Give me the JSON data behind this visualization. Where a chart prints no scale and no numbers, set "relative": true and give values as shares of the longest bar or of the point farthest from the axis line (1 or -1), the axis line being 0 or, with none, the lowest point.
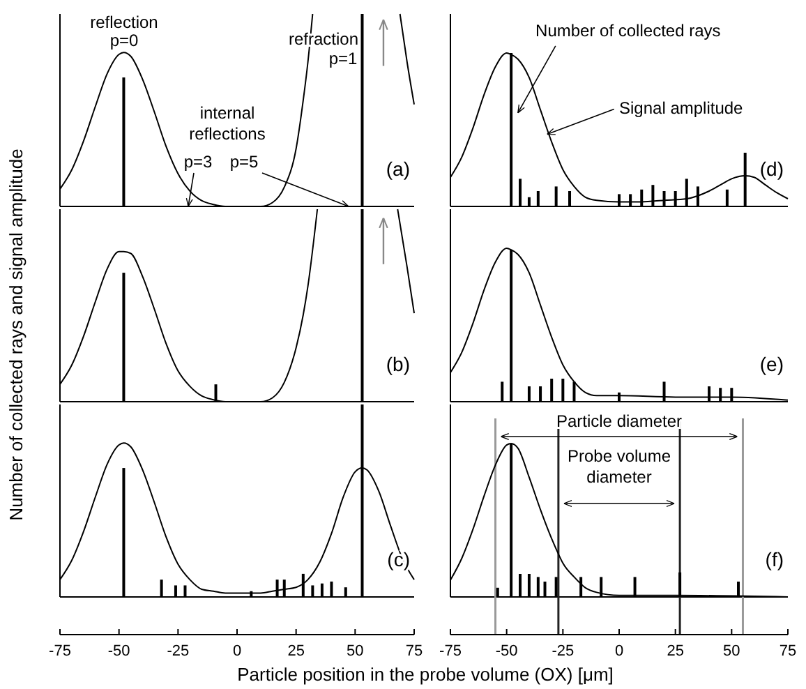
{
  "chart_data": [
    {
      "type": "line",
      "relative": true,
      "xlim": [
        -75,
        75
      ],
      "xticks": [
        -75,
        -50,
        -25,
        0,
        25,
        50,
        75
      ],
      "tick_labels": false,
      "ylabel": "Number of collected rays and signal amplitude",
      "series": [
        {
          "color": "#000000",
          "x": [
            -75,
            -70,
            -65,
            -60,
            -55,
            -50,
            -48,
            -45,
            -40,
            -35,
            -30,
            -25,
            -20,
            -15,
            -10,
            -5,
            0,
            5,
            10,
            15,
            20,
            25,
            28,
            30,
            32,
            50,
            69,
            72,
            75
          ],
          "values": [
            0.09,
            0.19,
            0.34,
            0.52,
            0.69,
            0.79,
            0.8,
            0.78,
            0.66,
            0.49,
            0.31,
            0.17,
            0.08,
            0.03,
            0.01,
            0,
            0,
            0,
            0,
            0.02,
            0.1,
            0.3,
            0.55,
            0.75,
            1,
            null,
            1,
            0.75,
            0.53
          ]
        },
        {
          "type": "bar",
          "color": "#000000",
          "x": [
            -48,
            53
          ],
          "values": [
            0.67,
            1
          ]
        }
      ],
      "annotations": [
        "reflection",
        "p=0",
        "refraction",
        "p=1",
        "internal reflections",
        "p=3",
        "p=5",
        "(a)"
      ]
    },
    {
      "type": "line",
      "relative": true,
      "xlim": [
        -75,
        75
      ],
      "xticks": [
        -75,
        -50,
        -25,
        0,
        25,
        50,
        75
      ],
      "tick_labels": false,
      "series": [
        {
          "color": "#000000",
          "x": [
            -75,
            -70,
            -65,
            -60,
            -55,
            -50,
            -48,
            -45,
            -40,
            -35,
            -30,
            -25,
            -20,
            -15,
            -10,
            -5,
            0,
            5,
            10,
            15,
            20,
            25,
            28,
            30,
            34,
            50,
            68,
            72,
            75
          ],
          "values": [
            0.09,
            0.19,
            0.34,
            0.52,
            0.69,
            0.78,
            0.78,
            0.77,
            0.65,
            0.48,
            0.3,
            0.16,
            0.08,
            0.03,
            0.01,
            0,
            0,
            0,
            0,
            0.02,
            0.1,
            0.28,
            0.45,
            0.6,
            1,
            null,
            1,
            0.7,
            0.46
          ]
        },
        {
          "type": "bar",
          "color": "#000000",
          "x": [
            -48,
            -9,
            53
          ],
          "values": [
            0.67,
            0.09,
            1
          ]
        }
      ],
      "annotations": [
        "(b)"
      ]
    },
    {
      "type": "line",
      "relative": true,
      "xlim": [
        -75,
        75
      ],
      "xticks": [
        -75,
        -50,
        -25,
        0,
        25,
        50,
        75
      ],
      "tick_labels": "x",
      "series": [
        {
          "color": "#000000",
          "x": [
            -75,
            -70,
            -65,
            -60,
            -55,
            -50,
            -48,
            -45,
            -40,
            -35,
            -30,
            -25,
            -20,
            -15,
            -10,
            -5,
            0,
            5,
            10,
            15,
            20,
            25,
            30,
            35,
            40,
            45,
            50,
            53,
            55,
            60,
            65,
            70,
            75
          ],
          "values": [
            0.09,
            0.19,
            0.34,
            0.52,
            0.69,
            0.79,
            0.8,
            0.78,
            0.66,
            0.49,
            0.31,
            0.17,
            0.09,
            0.04,
            0.03,
            0.02,
            0.02,
            0.02,
            0.02,
            0.03,
            0.04,
            0.05,
            0.09,
            0.18,
            0.33,
            0.52,
            0.65,
            0.67,
            0.66,
            0.55,
            0.37,
            0.2,
            0.09
          ]
        },
        {
          "type": "bar",
          "color": "#000000",
          "x": [
            -48,
            -32,
            -26,
            -22,
            6,
            17,
            20,
            28,
            32,
            36,
            40,
            46,
            53
          ],
          "values": [
            0.67,
            0.09,
            0.06,
            0.06,
            0.03,
            0.09,
            0.09,
            0.12,
            0.06,
            0.07,
            0.08,
            0.05,
            1
          ]
        }
      ],
      "annotations": [
        "(c)"
      ]
    },
    {
      "type": "line",
      "relative": true,
      "xlim": [
        -75,
        75
      ],
      "xticks": [
        -75,
        -50,
        -25,
        0,
        25,
        50,
        75
      ],
      "tick_labels": false,
      "series": [
        {
          "color": "#000000",
          "x": [
            -75,
            -70,
            -65,
            -60,
            -55,
            -50,
            -48,
            -45,
            -40,
            -35,
            -30,
            -25,
            -20,
            -15,
            -10,
            0,
            10,
            20,
            30,
            40,
            45,
            50,
            56,
            60,
            65,
            70,
            75
          ],
          "values": [
            0.19,
            0.32,
            0.51,
            0.73,
            0.91,
            1,
            0.99,
            0.96,
            0.84,
            0.63,
            0.42,
            0.24,
            0.13,
            0.06,
            0.04,
            0.03,
            0.03,
            0.04,
            0.05,
            0.1,
            0.14,
            0.18,
            0.2,
            0.19,
            0.14,
            0.09,
            0.05
          ]
        },
        {
          "type": "bar",
          "color": "#000000",
          "x": [
            -48,
            -44,
            -40,
            -36,
            -28,
            -22,
            0,
            5,
            10,
            15,
            20,
            25,
            30,
            35,
            48,
            56
          ],
          "values": [
            1,
            0.18,
            0.06,
            0.1,
            0.13,
            0.1,
            0.08,
            0.08,
            0.11,
            0.14,
            0.1,
            0.1,
            0.18,
            0.13,
            0.11,
            0.35
          ]
        }
      ],
      "annotations": [
        {
          "text": "Number of collected rays",
          "x": -45,
          "y": 0.61
        },
        {
          "text": "Signal amplitude",
          "x": -32,
          "y": 0.47
        },
        "(d)"
      ]
    },
    {
      "type": "line",
      "relative": true,
      "xlim": [
        -75,
        75
      ],
      "xticks": [
        -75,
        -50,
        -25,
        0,
        25,
        50,
        75
      ],
      "tick_labels": false,
      "series": [
        {
          "color": "#000000",
          "x": [
            -75,
            -70,
            -65,
            -60,
            -55,
            -50,
            -48,
            -45,
            -40,
            -35,
            -30,
            -25,
            -20,
            -15,
            -10,
            0,
            25,
            50,
            75
          ],
          "values": [
            0.19,
            0.32,
            0.51,
            0.73,
            0.91,
            1,
            0.99,
            0.96,
            0.84,
            0.63,
            0.42,
            0.24,
            0.13,
            0.06,
            0.04,
            0.04,
            0.03,
            0.03,
            0.01
          ]
        },
        {
          "type": "bar",
          "color": "#000000",
          "x": [
            -52,
            -48,
            -40,
            -35,
            -30,
            -25,
            -20,
            0,
            20,
            40,
            45,
            50
          ],
          "values": [
            0.13,
            0.99,
            0.1,
            0.1,
            0.15,
            0.15,
            0.13,
            0.06,
            0.13,
            0.1,
            0.09,
            0.09
          ]
        }
      ],
      "annotations": [
        "(e)"
      ]
    },
    {
      "type": "line",
      "relative": true,
      "xlim": [
        -75,
        75
      ],
      "xticks": [
        -75,
        -50,
        -25,
        0,
        25,
        50,
        75
      ],
      "tick_labels": "x",
      "xlabel": "Particle position in the probe volume (OX) [μm]",
      "series": [
        {
          "color": "#000000",
          "x": [
            -75,
            -70,
            -65,
            -60,
            -55,
            -50,
            -48,
            -45,
            -40,
            -35,
            -30,
            -27,
            -25,
            -20,
            -15,
            -10,
            0,
            25,
            75
          ],
          "values": [
            0.11,
            0.25,
            0.44,
            0.66,
            0.86,
            0.99,
            1,
            0.97,
            0.78,
            0.57,
            0.38,
            0.28,
            0.22,
            0.13,
            0.06,
            0.03,
            0.01,
            0.01,
            0
          ]
        },
        {
          "type": "bar",
          "color": "#000000",
          "x": [
            -54,
            -48,
            -44,
            -40,
            -36,
            -33,
            -28,
            -17,
            -8,
            7,
            27,
            53
          ],
          "values": [
            0.06,
            1,
            0.15,
            0.15,
            0.13,
            0.1,
            0.13,
            0.13,
            0.13,
            0.13,
            0.16,
            0.1
          ]
        }
      ],
      "ref_lines": [
        {
          "axis": "x",
          "value": -55,
          "color": "#999999"
        },
        {
          "axis": "x",
          "value": 55,
          "color": "#999999"
        },
        {
          "axis": "x",
          "value": -27,
          "color": "#222222"
        },
        {
          "axis": "x",
          "value": 27,
          "color": "#222222"
        }
      ],
      "annotations": [
        "Particle diameter",
        "Probe volume diameter",
        "(f)"
      ]
    }
  ]
}
